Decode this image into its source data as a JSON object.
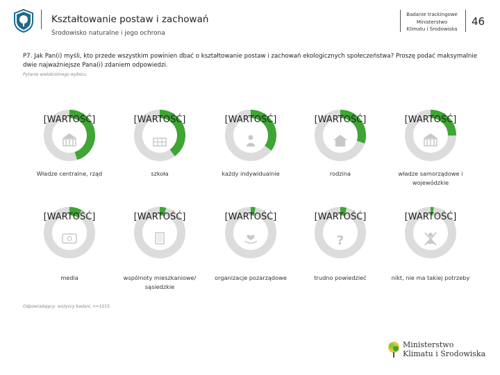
{
  "header": {
    "title": "Kształtowanie postaw i zachowań",
    "subtitle": "Środowisko naturalne i jego ochrona",
    "study_lines": [
      "Badanie trackingowe",
      "Ministerstwo",
      "Klimatu i Środowiska"
    ],
    "page_number": "46"
  },
  "question": {
    "text": "P7. Jak Pan(i) myśli, kto przede wszystkim powinien dbać o kształtowanie postaw i zachowań ekologicznych społeczeństwa? Proszę podać maksymalnie dwie najważniejsze Pana(i) zdaniem odpowiedzi.",
    "hint": "Pytanie wielokrotnego wyboru."
  },
  "colors": {
    "accent": "#3fa535",
    "track": "#dcdcdc",
    "icon": "#c8c8c8"
  },
  "chart_data": {
    "type": "donut",
    "value_placeholder": "[WARTOŚĆ]",
    "items": [
      {
        "label": "Władze centralne, rząd",
        "share": 0.45,
        "icon": "government-building-icon"
      },
      {
        "label": "szkoła",
        "share": 0.4,
        "icon": "school-icon"
      },
      {
        "label": "każdy indywidualnie",
        "share": 0.35,
        "icon": "person-icon"
      },
      {
        "label": "rodzina",
        "share": 0.3,
        "icon": "family-house-icon"
      },
      {
        "label": "władze samorządowe i wojewódzkie",
        "share": 0.25,
        "icon": "town-hall-icon"
      },
      {
        "label": "media",
        "share": 0.08,
        "icon": "tv-icon"
      },
      {
        "label": "wspólnoty mieszkaniowe/ sąsiedzkie",
        "share": 0.04,
        "icon": "apartment-block-icon"
      },
      {
        "label": "organizacje pozarządowe",
        "share": 0.03,
        "icon": "hands-heart-icon"
      },
      {
        "label": "trudno powiedzieć",
        "share": 0.04,
        "icon": "question-mark-icon"
      },
      {
        "label": "nikt, nie ma takiej potrzeby",
        "share": 0.02,
        "icon": "crossed-person-icon"
      }
    ]
  },
  "footnote": "Odpowiadający: wszyscy badani, n=1015.",
  "ministry": {
    "line1": "Ministerstwo",
    "line2": "Klimatu i Środowiska"
  }
}
